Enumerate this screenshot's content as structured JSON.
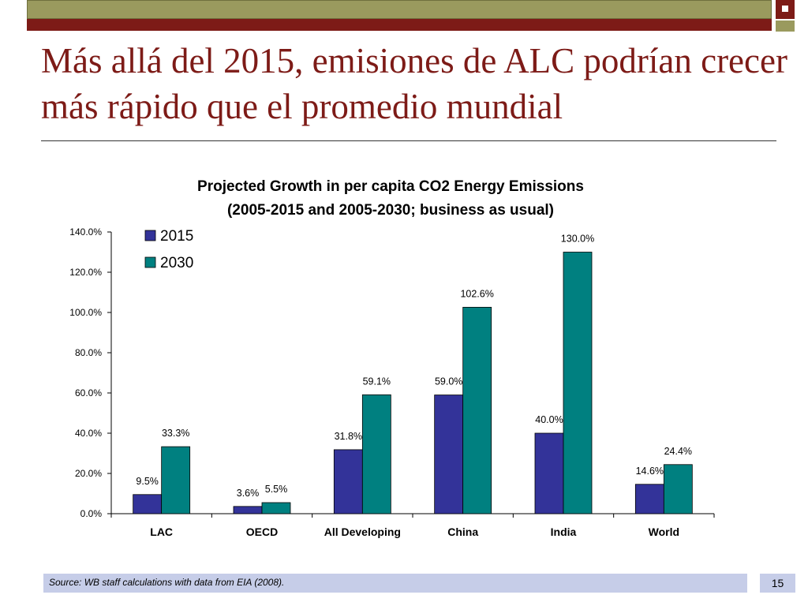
{
  "slide": {
    "title": "Más allá del 2015, emisiones de ALC podrían crecer más rápido que el promedio mundial",
    "source": "Source: WB staff calculations with data from EIA (2008).",
    "page_number": "15"
  },
  "colors": {
    "olive": "#9a9a5e",
    "dark_red": "#7d1b17",
    "footer_bg": "#c6cde8",
    "series_2015": "#333399",
    "series_2030": "#008080"
  },
  "chart_data": {
    "type": "bar",
    "title_line1": "Projected Growth in per capita CO2 Energy Emissions",
    "title_line2": "(2005-2015 and 2005-2030; business as usual)",
    "categories": [
      "LAC",
      "OECD",
      "All Developing",
      "China",
      "India",
      "World"
    ],
    "series": [
      {
        "name": "2015",
        "color": "#333399",
        "values": [
          9.5,
          3.6,
          31.8,
          59.0,
          40.0,
          14.6
        ],
        "labels": [
          "9.5%",
          "3.6%",
          "31.8%",
          "59.0%",
          "40.0%",
          "14.6%"
        ]
      },
      {
        "name": "2030",
        "color": "#008080",
        "values": [
          33.3,
          5.5,
          59.1,
          102.6,
          130.0,
          24.4
        ],
        "labels": [
          "33.3%",
          "5.5%",
          "59.1%",
          "102.6%",
          "130.0%",
          "24.4%"
        ]
      }
    ],
    "ylim": [
      0,
      140
    ],
    "yticks": [
      "0.0%",
      "20.0%",
      "40.0%",
      "60.0%",
      "80.0%",
      "100.0%",
      "120.0%",
      "140.0%"
    ],
    "ytick_values": [
      0,
      20,
      40,
      60,
      80,
      100,
      120,
      140
    ],
    "legend_position": "top-left",
    "grid": false
  }
}
